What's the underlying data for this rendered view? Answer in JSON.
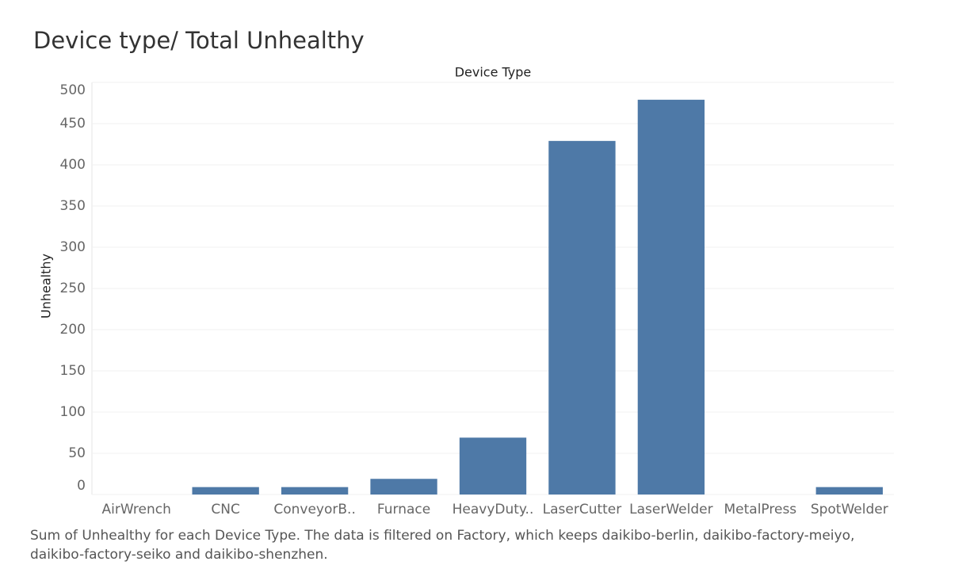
{
  "chart_data": {
    "type": "bar",
    "title": "Device type/ Total Unhealthy",
    "x_label": "Device Type",
    "y_label": "Unhealthy",
    "categories": [
      "AirWrench",
      "CNC",
      "ConveyorB..",
      "Furnace",
      "HeavyDuty..",
      "LaserCutter",
      "LaserWelder",
      "MetalPress",
      "SpotWelder"
    ],
    "values": [
      0,
      9,
      9,
      19,
      69,
      429,
      479,
      0,
      9
    ],
    "color": "#4e79a7",
    "ylim": [
      0,
      500
    ],
    "yticks": [
      0,
      50,
      100,
      150,
      200,
      250,
      300,
      350,
      400,
      450,
      500
    ],
    "grid": true,
    "caption": [
      "Sum of Unhealthy for each Device Type. The data is filtered on Factory, which keeps daikibo-berlin, daikibo-factory-meiyo,",
      "daikibo-factory-seiko and daikibo-shenzhen."
    ]
  }
}
